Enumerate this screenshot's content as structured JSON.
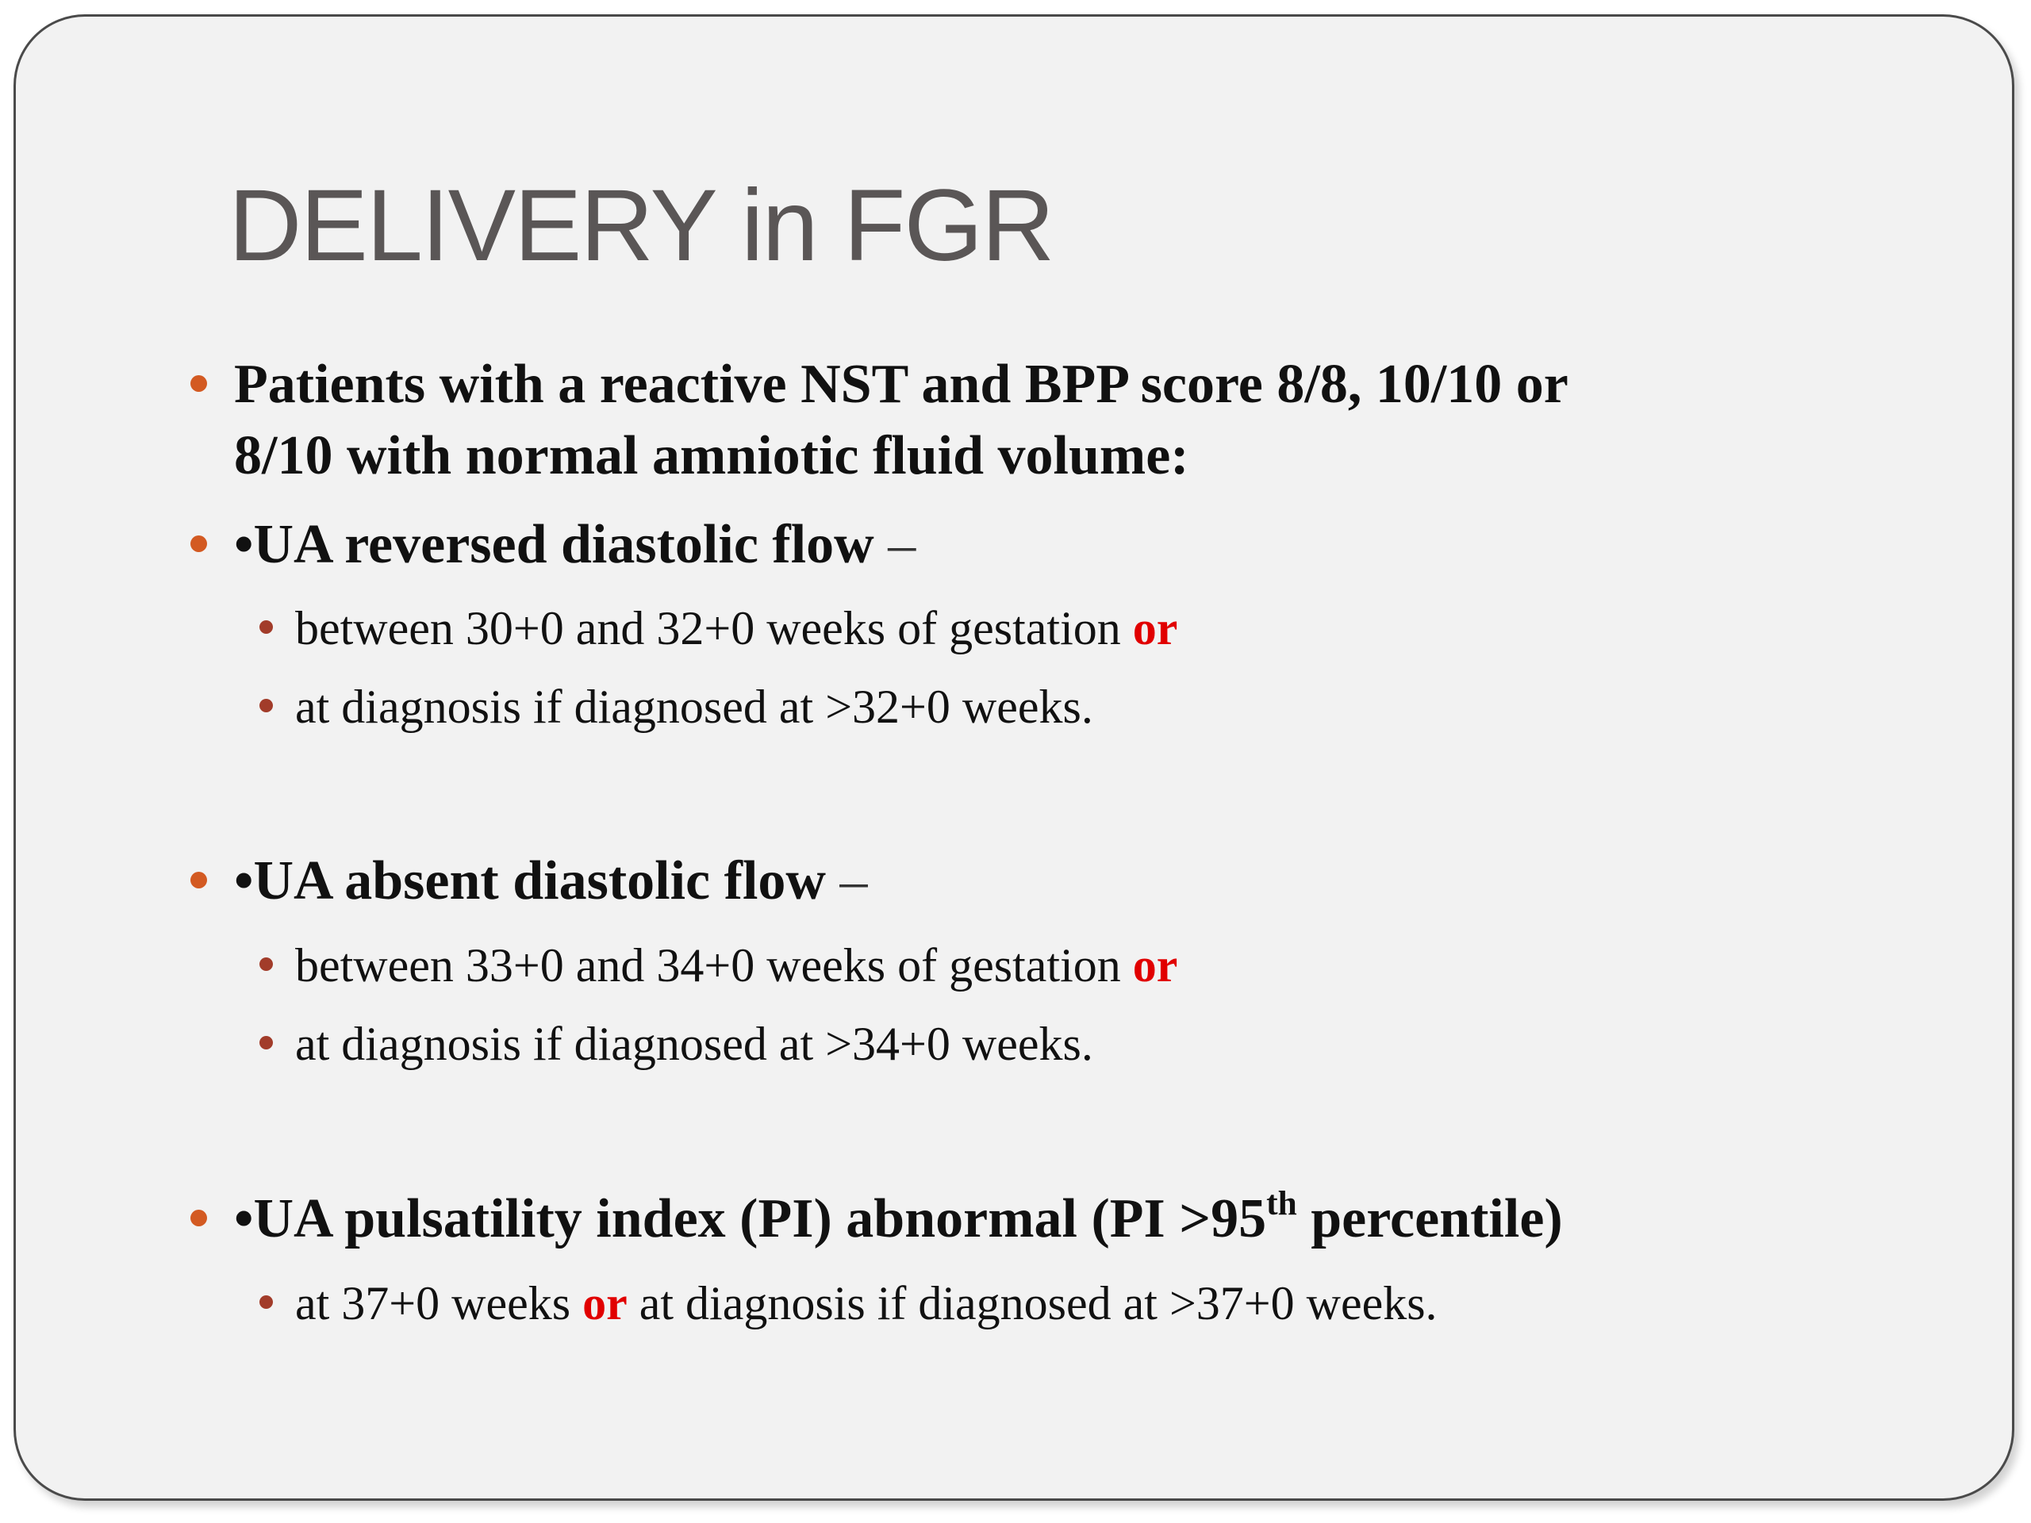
{
  "slide": {
    "title": "DELIVERY in FGR",
    "bullets": {
      "b1": {
        "line1": "Patients with a reactive NST and BPP score 8/8, 10/10 or",
        "line2": "8/10 with normal amniotic fluid volume:"
      },
      "b2": {
        "label": "•UA reversed diastolic flow",
        "dash": " –",
        "sub1": "between 30+0 and 32+0 weeks of gestation ",
        "sub1_or": "or",
        "sub2": "at diagnosis if diagnosed at >32+0 weeks."
      },
      "b3": {
        "label": "•UA absent diastolic flow",
        "dash": " –",
        "sub1": "between 33+0 and 34+0 weeks of gestation ",
        "sub1_or": "or",
        "sub2": "at diagnosis if diagnosed at >34+0 weeks."
      },
      "b4": {
        "label_a": "•UA pulsatility index (PI) abnormal (PI >95",
        "label_sup": "th",
        "label_b": " percentile)",
        "sub1_a": "at 37+0 weeks ",
        "sub1_or": "or",
        "sub1_b": " at diagnosis if diagnosed at >37+0 weeks."
      }
    },
    "colors": {
      "title": "#5a5656",
      "bullet_level1": "#d35a22",
      "bullet_level2": "#a23c2a",
      "emphasis_or": "#e10000",
      "background": "#f2f2f2"
    }
  }
}
